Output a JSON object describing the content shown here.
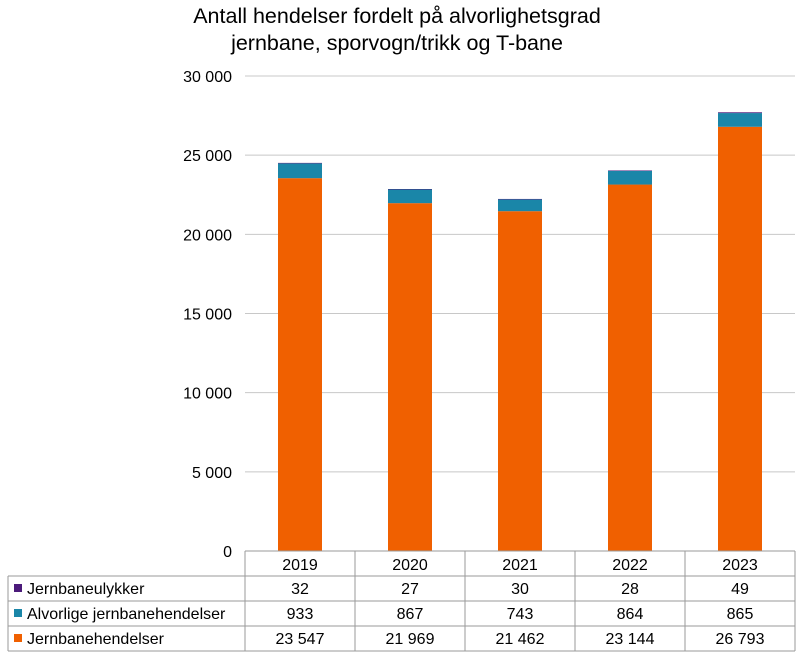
{
  "chart_data": {
    "type": "bar",
    "stacked": true,
    "title": "Antall hendelser fordelt på alvorlighetsgrad",
    "subtitle": "jernbane, sporvogn/trikk og T-bane",
    "categories": [
      "2019",
      "2020",
      "2021",
      "2022",
      "2023"
    ],
    "ylim": [
      0,
      30000
    ],
    "yticks": [
      0,
      5000,
      10000,
      15000,
      20000,
      25000,
      30000
    ],
    "ytick_labels": [
      "0",
      "5 000",
      "10 000",
      "15 000",
      "20 000",
      "25 000",
      "30 000"
    ],
    "grid": true,
    "legend": "data-table-left",
    "series": [
      {
        "name": "Jernbaneulykker",
        "color": "#4b1a7a",
        "values": [
          32,
          27,
          30,
          28,
          49
        ],
        "labels": [
          "32",
          "27",
          "30",
          "28",
          "49"
        ]
      },
      {
        "name": "Alvorlige jernbanehendelser",
        "color": "#1a86a8",
        "values": [
          933,
          867,
          743,
          864,
          865
        ],
        "labels": [
          "933",
          "867",
          "743",
          "864",
          "865"
        ]
      },
      {
        "name": "Jernbanehendelser",
        "color": "#f06000",
        "values": [
          23547,
          21969,
          21462,
          23144,
          26793
        ],
        "labels": [
          "23 547",
          "21 969",
          "21 462",
          "23 144",
          "26 793"
        ]
      }
    ]
  }
}
